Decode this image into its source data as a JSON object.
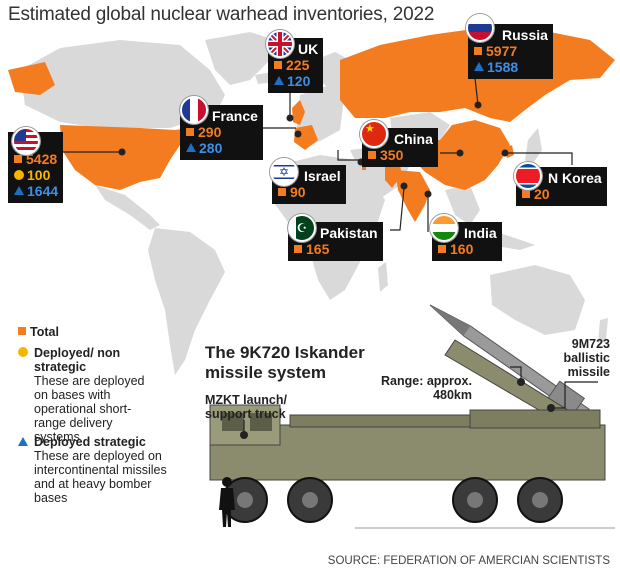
{
  "title": "Estimated global nuclear warhead inventories, 2022",
  "colors": {
    "total": "#f47c20",
    "deployed_nonstrategic": "#f7b500",
    "deployed_strategic": "#1f6fc5",
    "map_land": "#d9d9d9",
    "nuclear_states": "#f47c20"
  },
  "countries": {
    "us": {
      "name": "US",
      "total": "5428",
      "nonstrategic": "100",
      "strategic": "1644",
      "flag": "us-flag-icon"
    },
    "uk": {
      "name": "UK",
      "total": "225",
      "strategic": "120",
      "flag": "uk-flag-icon"
    },
    "france": {
      "name": "France",
      "total": "290",
      "strategic": "280",
      "flag": "france-flag-icon"
    },
    "russia": {
      "name": "Russia",
      "total": "5977",
      "strategic": "1588",
      "flag": "russia-flag-icon"
    },
    "china": {
      "name": "China",
      "total": "350",
      "flag": "china-flag-icon"
    },
    "israel": {
      "name": "Israel",
      "total": "90",
      "flag": "israel-flag-icon"
    },
    "pakistan": {
      "name": "Pakistan",
      "total": "165",
      "flag": "pakistan-flag-icon"
    },
    "india": {
      "name": "India",
      "total": "160",
      "flag": "india-flag-icon"
    },
    "nkorea": {
      "name": "N Korea",
      "total": "20",
      "flag": "north-korea-flag-icon"
    }
  },
  "legend": {
    "total": "Total",
    "nonstrategic_title": "Deployed/ non strategic",
    "nonstrategic_desc": "These are deployed on bases with operational short-range delivery systems",
    "strategic_title": "Deployed strategic",
    "strategic_desc": "These are deployed on intercontinental missiles and at heavy bomber bases"
  },
  "missile": {
    "title": "The 9K720 Iskander missile system",
    "truck_label": "MZKT launch/ support truck",
    "range_label": "Range: approx. 480km",
    "missile_label": "9M723 ballistic missile"
  },
  "source": "SOURCE: FEDERATION OF AMERCIAN SCIENTISTS"
}
